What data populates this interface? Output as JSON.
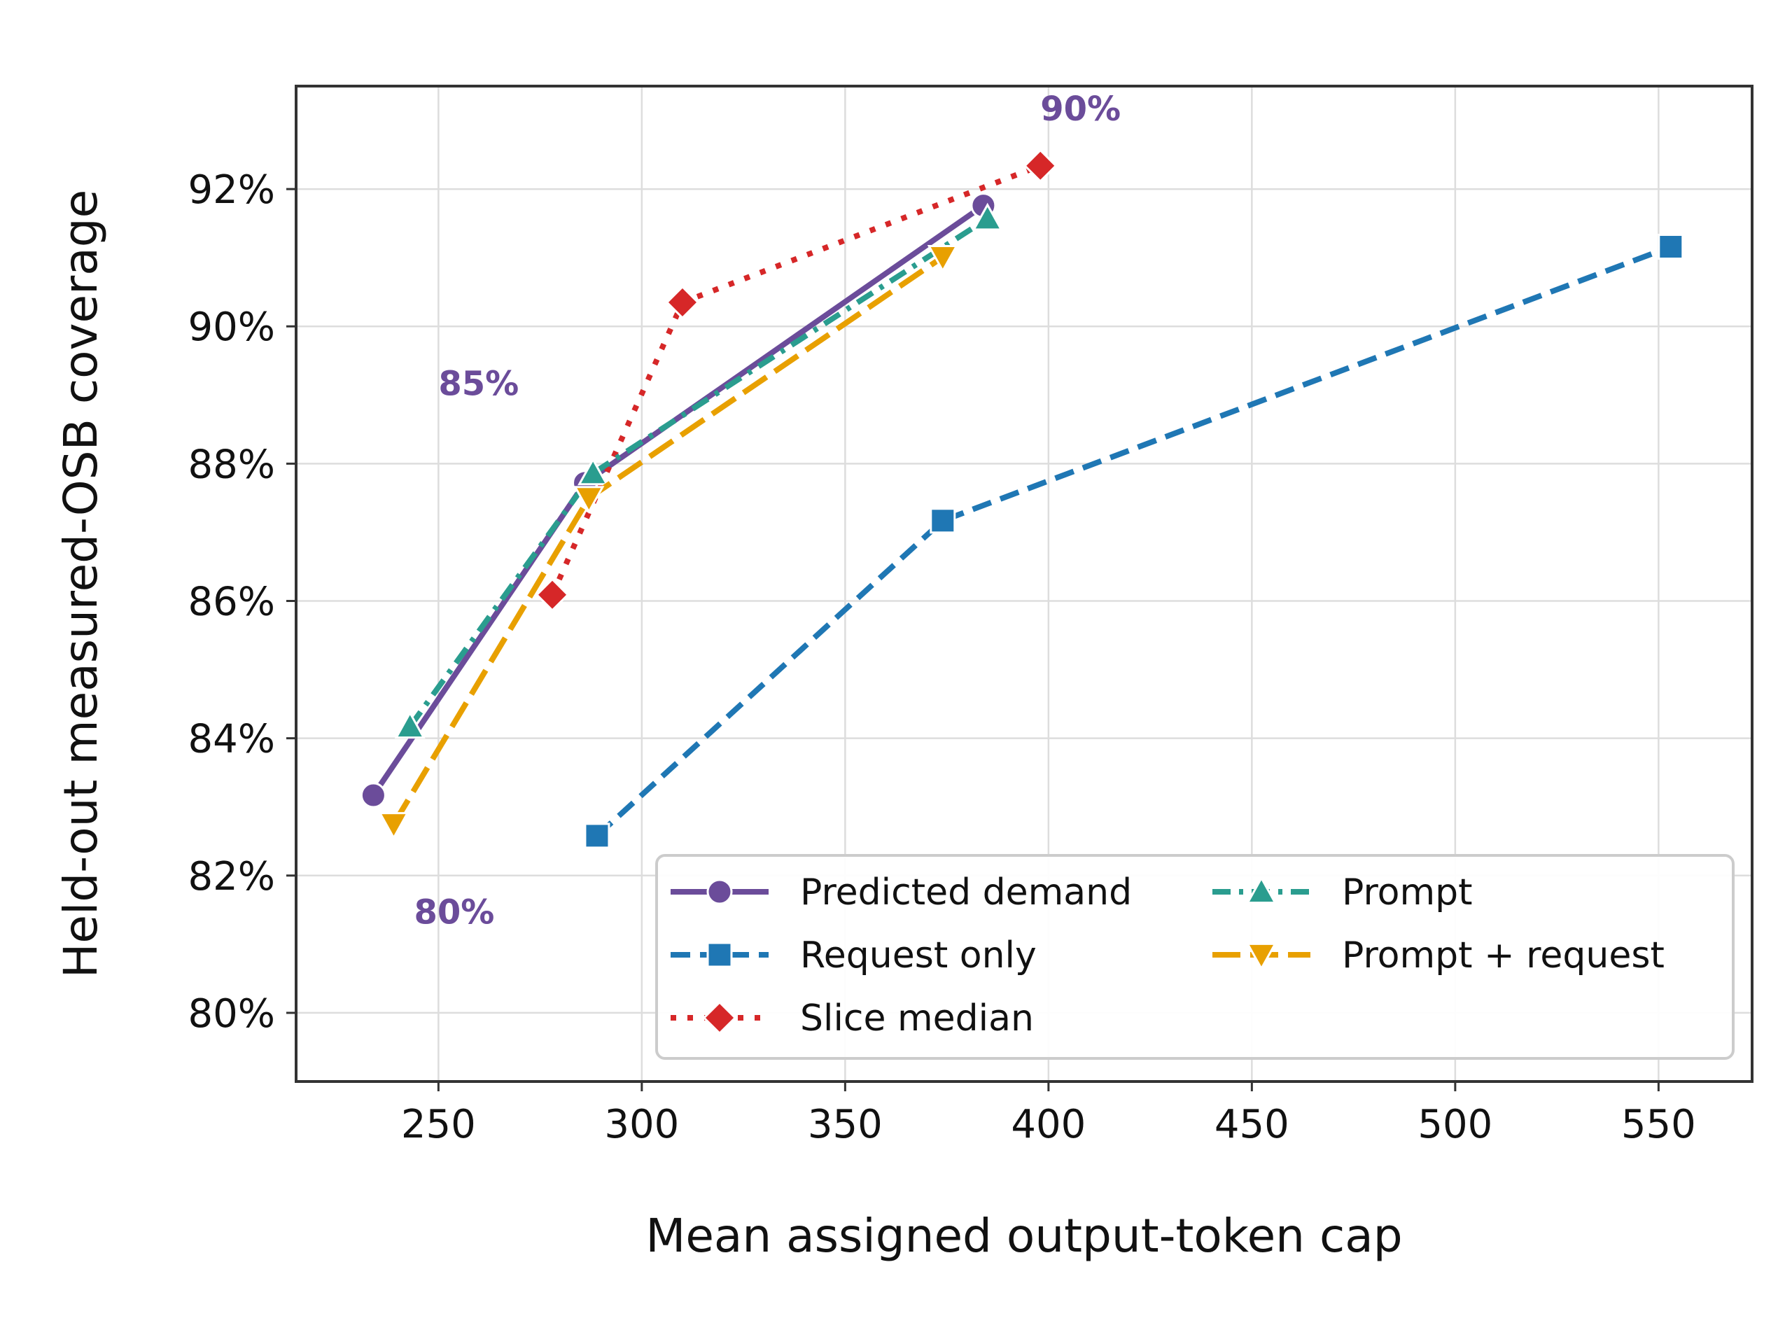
{
  "chart_data": {
    "type": "line",
    "xlabel": "Mean assigned output-token cap",
    "ylabel": "Held-out measured-OSB coverage",
    "xlim": [
      215,
      573
    ],
    "ylim": [
      0.79,
      0.935
    ],
    "x_ticks": [
      250,
      300,
      350,
      400,
      450,
      500,
      550
    ],
    "y_ticks": [
      0.8,
      0.82,
      0.84,
      0.86,
      0.88,
      0.9,
      0.92
    ],
    "y_tick_format": "percent",
    "grid": true,
    "legend_position": "lower-right",
    "legend_columns": 2,
    "series": [
      {
        "name": "Predicted demand",
        "color": "#6b4c9a",
        "line_style": "solid",
        "marker": "circle",
        "points": [
          [
            234,
            0.8317
          ],
          [
            286,
            0.8772
          ],
          [
            384,
            0.9176
          ]
        ]
      },
      {
        "name": "Request only",
        "color": "#1f77b4",
        "line_style": "dashed",
        "marker": "square",
        "points": [
          [
            289,
            0.8258
          ],
          [
            374,
            0.8717
          ],
          [
            553,
            0.9116
          ]
        ]
      },
      {
        "name": "Slice median",
        "color": "#d62728",
        "line_style": "dotted",
        "marker": "diamond",
        "points": [
          [
            278,
            0.8609
          ],
          [
            310,
            0.9035
          ],
          [
            398,
            0.9234
          ]
        ]
      },
      {
        "name": "Prompt",
        "color": "#2a9d8f",
        "line_style": "dashdot",
        "marker": "triangle-up",
        "points": [
          [
            243,
            0.8417
          ],
          [
            288,
            0.8786
          ],
          [
            385,
            0.9157
          ]
        ]
      },
      {
        "name": "Prompt + request",
        "color": "#e8a000",
        "line_style": "longdash",
        "marker": "triangle-down",
        "points": [
          [
            239,
            0.8275
          ],
          [
            287,
            0.875
          ],
          [
            374,
            0.9101
          ]
        ]
      }
    ],
    "annotations": [
      {
        "text": "90%",
        "x": 398,
        "y": 0.93,
        "color": "#6b4c9a"
      },
      {
        "text": "85%",
        "x": 250,
        "y": 0.89,
        "color": "#6b4c9a"
      },
      {
        "text": "80%",
        "x": 244,
        "y": 0.813,
        "color": "#6b4c9a"
      }
    ]
  }
}
